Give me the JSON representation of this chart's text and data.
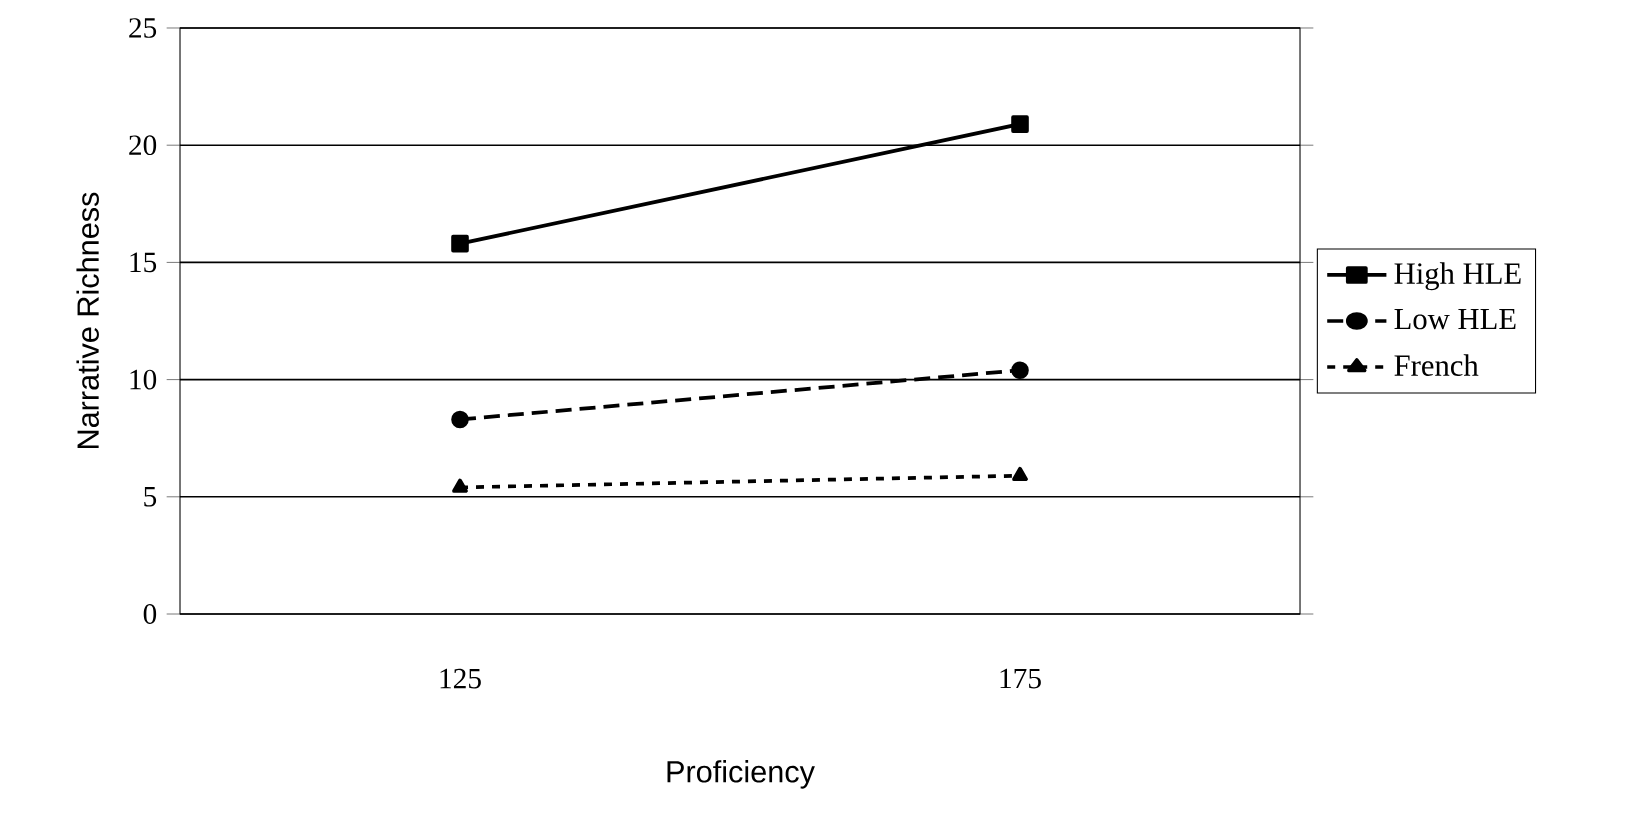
{
  "chart_data": {
    "type": "line",
    "xlabel": "Proficiency",
    "ylabel": "Narrative Richness",
    "categories": [
      "125",
      "175"
    ],
    "series": [
      {
        "name": "High HLE",
        "color": "#000000",
        "values": [
          15.8,
          20.9
        ],
        "marker": "square",
        "line_style": "solid"
      },
      {
        "name": "Low HLE",
        "color": "#000000",
        "values": [
          8.3,
          10.4
        ],
        "marker": "circle",
        "line_style": "dashed"
      },
      {
        "name": "French",
        "color": "#000000",
        "values": [
          5.4,
          5.9
        ],
        "marker": "triangle",
        "line_style": "dotted"
      }
    ],
    "ylim": [
      0,
      25
    ],
    "yticks": [
      0,
      5,
      10,
      15,
      20,
      25
    ],
    "grid": "y",
    "legend": "right"
  }
}
